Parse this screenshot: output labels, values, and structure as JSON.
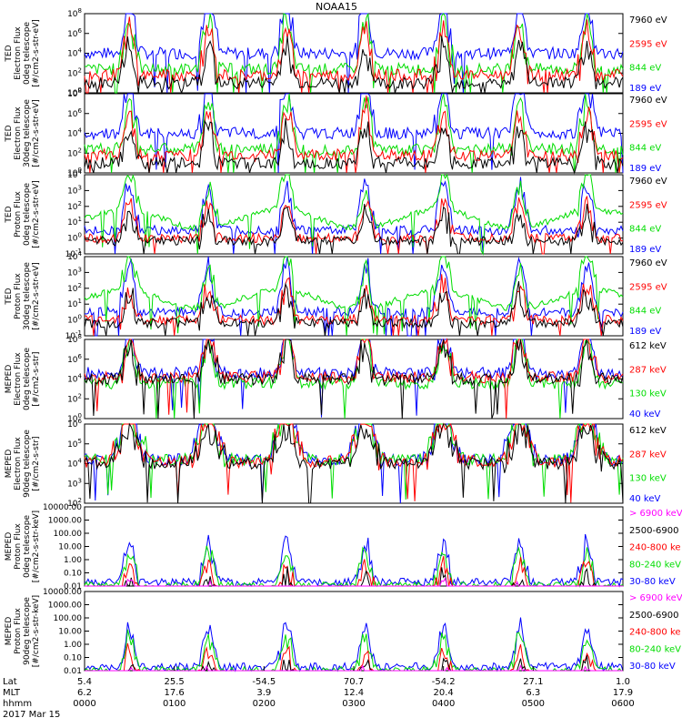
{
  "title": "NOAA15",
  "colors": {
    "blue": "#0000ff",
    "red": "#ff0000",
    "green": "#00dd00",
    "black": "#000000",
    "magenta": "#ff00ff"
  },
  "chart_data": [
    {
      "type": "line",
      "panel": 1,
      "ylabel": [
        "TED",
        "Electron Flux",
        "0deg telescope",
        "[#/cm2-s-str-eV]"
      ],
      "y_scale": "log",
      "yticks": [
        "10^0",
        "10^2",
        "10^4",
        "10^6",
        "10^8"
      ],
      "legend": [
        {
          "label": "7960 eV",
          "color": "#000000"
        },
        {
          "label": "2595 eV",
          "color": "#ff0000"
        },
        {
          "label": "844 eV",
          "color": "#00dd00"
        },
        {
          "label": "189 eV",
          "color": "#0000ff"
        }
      ],
      "series_profile": "ted_e0",
      "series": [
        {
          "name": "189 eV",
          "color": "#0000ff",
          "base": 2.0
        },
        {
          "name": "844 eV",
          "color": "#00dd00",
          "base": 1.2
        },
        {
          "name": "2595 eV",
          "color": "#ff0000",
          "base": 0.9
        },
        {
          "name": "7960 eV",
          "color": "#000000",
          "base": 0.5
        }
      ]
    },
    {
      "type": "line",
      "panel": 2,
      "ylabel": [
        "TED",
        "Electron Flux",
        "30deg telescope",
        "[#/cm2-s-str-eV]"
      ],
      "y_scale": "log",
      "yticks": [
        "10^0",
        "10^2",
        "10^4",
        "10^6",
        "10^8"
      ],
      "legend": [
        {
          "label": "7960 eV",
          "color": "#000000"
        },
        {
          "label": "2595 eV",
          "color": "#ff0000"
        },
        {
          "label": "844 eV",
          "color": "#00dd00"
        },
        {
          "label": "189 eV",
          "color": "#0000ff"
        }
      ],
      "series_profile": "ted_e30",
      "series": [
        {
          "name": "189 eV",
          "color": "#0000ff",
          "base": 2.0
        },
        {
          "name": "844 eV",
          "color": "#00dd00",
          "base": 1.2
        },
        {
          "name": "2595 eV",
          "color": "#ff0000",
          "base": 0.9
        },
        {
          "name": "7960 eV",
          "color": "#000000",
          "base": 0.5
        }
      ]
    },
    {
      "type": "line",
      "panel": 3,
      "ylabel": [
        "TED",
        "Proton Flux",
        "0deg telescope",
        "[#/cm2-s-str-eV]"
      ],
      "y_scale": "log",
      "yticks": [
        "10^-1",
        "10^0",
        "10^1",
        "10^2",
        "10^3",
        "10^4"
      ],
      "legend": [
        {
          "label": "7960 eV",
          "color": "#000000"
        },
        {
          "label": "2595 eV",
          "color": "#ff0000"
        },
        {
          "label": "844 eV",
          "color": "#00dd00"
        },
        {
          "label": "189 eV",
          "color": "#0000ff"
        }
      ],
      "series_profile": "ted_p0",
      "series": [
        {
          "name": "189 eV",
          "color": "#0000ff",
          "base": 1.5
        },
        {
          "name": "844 eV",
          "color": "#00dd00",
          "base": 2.2
        },
        {
          "name": "2595 eV",
          "color": "#ff0000",
          "base": 1.0
        },
        {
          "name": "7960 eV",
          "color": "#000000",
          "base": 0.8
        }
      ]
    },
    {
      "type": "line",
      "panel": 4,
      "ylabel": [
        "TED",
        "Proton Flux",
        "30deg telescope",
        "[#/cm2-s-str-eV]"
      ],
      "y_scale": "log",
      "yticks": [
        "10^-1",
        "10^0",
        "10^1",
        "10^2",
        "10^3",
        "10^4"
      ],
      "legend": [
        {
          "label": "7960 eV",
          "color": "#000000"
        },
        {
          "label": "2595 eV",
          "color": "#ff0000"
        },
        {
          "label": "844 eV",
          "color": "#00dd00"
        },
        {
          "label": "189 eV",
          "color": "#0000ff"
        }
      ],
      "series_profile": "ted_p30",
      "series": [
        {
          "name": "189 eV",
          "color": "#0000ff",
          "base": 1.5
        },
        {
          "name": "844 eV",
          "color": "#00dd00",
          "base": 2.3
        },
        {
          "name": "2595 eV",
          "color": "#ff0000",
          "base": 1.0
        },
        {
          "name": "7960 eV",
          "color": "#000000",
          "base": 0.8
        }
      ]
    },
    {
      "type": "line",
      "panel": 5,
      "ylabel": [
        "MEPED",
        "Electron Flux",
        "0deg telescope",
        "[#/cm2-s-str]"
      ],
      "y_scale": "log",
      "yticks": [
        "10^0",
        "10^2",
        "10^4",
        "10^6",
        "10^8"
      ],
      "legend": [
        {
          "label": "612 keV",
          "color": "#000000"
        },
        {
          "label": "287 keV",
          "color": "#ff0000"
        },
        {
          "label": "130 keV",
          "color": "#00dd00"
        },
        {
          "label": "40 keV",
          "color": "#0000ff"
        }
      ],
      "series_profile": "meped_e0",
      "series": [
        {
          "name": "40 keV",
          "color": "#0000ff",
          "base": 2.3
        },
        {
          "name": "130 keV",
          "color": "#00dd00",
          "base": 1.8
        },
        {
          "name": "287 keV",
          "color": "#ff0000",
          "base": 2.1
        },
        {
          "name": "612 keV",
          "color": "#000000",
          "base": 2.0
        }
      ]
    },
    {
      "type": "line",
      "panel": 6,
      "ylabel": [
        "MEPED",
        "Electron Flux",
        "90deg telescope",
        "[#/cm2-s-str]"
      ],
      "y_scale": "log",
      "yticks": [
        "10^2",
        "10^3",
        "10^4",
        "10^5",
        "10^6"
      ],
      "legend": [
        {
          "label": "612 keV",
          "color": "#000000"
        },
        {
          "label": "287 keV",
          "color": "#ff0000"
        },
        {
          "label": "130 keV",
          "color": "#00dd00"
        },
        {
          "label": "40 keV",
          "color": "#0000ff"
        }
      ],
      "series_profile": "meped_e90",
      "series": [
        {
          "name": "40 keV",
          "color": "#0000ff",
          "base": 2.2
        },
        {
          "name": "130 keV",
          "color": "#00dd00",
          "base": 2.2
        },
        {
          "name": "287 keV",
          "color": "#ff0000",
          "base": 2.1
        },
        {
          "name": "612 keV",
          "color": "#000000",
          "base": 2.0
        }
      ]
    },
    {
      "type": "line",
      "panel": 7,
      "ylabel": [
        "MEPED",
        "Proton Flux",
        "0deg telescope",
        "[#/cm2-s-str-keV]"
      ],
      "y_scale": "log",
      "yticks": [
        "0.01",
        "0.10",
        "1.00",
        "10.00",
        "100.00",
        "1000.00",
        "10000.00"
      ],
      "legend": [
        {
          "label": "> 6900 keV",
          "color": "#ff00ff"
        },
        {
          "label": "2500-6900",
          "color": "#000000"
        },
        {
          "label": "240-800 ke",
          "color": "#ff0000"
        },
        {
          "label": "80-240 keV",
          "color": "#00dd00"
        },
        {
          "label": "30-80 keV",
          "color": "#0000ff"
        }
      ],
      "series_profile": "meped_p0",
      "series": [
        {
          "name": "30-80 keV",
          "color": "#0000ff",
          "base": 0.3
        },
        {
          "name": "80-240 keV",
          "color": "#00dd00",
          "base": 0.0
        },
        {
          "name": "240-800 ke",
          "color": "#ff0000",
          "base": -0.5
        },
        {
          "name": "2500-6900",
          "color": "#000000",
          "base": -1.1
        },
        {
          "name": "> 6900 keV",
          "color": "#ff00ff",
          "base": -1.5
        }
      ]
    },
    {
      "type": "line",
      "panel": 8,
      "ylabel": [
        "MEPED",
        "Proton Flux",
        "90deg telescope",
        "[#/cm2-s-str-keV]"
      ],
      "y_scale": "log",
      "yticks": [
        "0.01",
        "0.10",
        "1.00",
        "10.00",
        "100.00",
        "1000.00",
        "10000.00"
      ],
      "legend": [
        {
          "label": "> 6900 keV",
          "color": "#ff00ff"
        },
        {
          "label": "2500-6900",
          "color": "#000000"
        },
        {
          "label": "240-800 ke",
          "color": "#ff0000"
        },
        {
          "label": "80-240 keV",
          "color": "#00dd00"
        },
        {
          "label": "30-80 keV",
          "color": "#0000ff"
        }
      ],
      "series_profile": "meped_p90",
      "series": [
        {
          "name": "30-80 keV",
          "color": "#0000ff",
          "base": 0.3
        },
        {
          "name": "80-240 keV",
          "color": "#00dd00",
          "base": 0.0
        },
        {
          "name": "240-800 ke",
          "color": "#ff0000",
          "base": -0.7
        },
        {
          "name": "2500-6900",
          "color": "#000000",
          "base": -1.2
        },
        {
          "name": "> 6900 keV",
          "color": "#ff00ff",
          "base": -1.5
        }
      ]
    }
  ],
  "x_axis": {
    "row_labels": [
      "Lat",
      "MLT",
      "hhmm"
    ],
    "date": "2017 Mar 15",
    "ticks": [
      {
        "lat": "5.4",
        "mlt": "6.2",
        "hhmm": "0000"
      },
      {
        "lat": "25.5",
        "mlt": "17.6",
        "hhmm": "0100"
      },
      {
        "lat": "-54.5",
        "mlt": "3.9",
        "hhmm": "0200"
      },
      {
        "lat": "70.7",
        "mlt": "12.4",
        "hhmm": "0300"
      },
      {
        "lat": "-54.2",
        "mlt": "20.4",
        "hhmm": "0400"
      },
      {
        "lat": "27.1",
        "mlt": "6.3",
        "hhmm": "0500"
      },
      {
        "lat": "1.0",
        "mlt": "17.9",
        "hhmm": "0600"
      }
    ],
    "orbit_passes_hours": [
      0.5,
      1.38,
      2.25,
      3.13,
      4.0,
      4.85,
      5.6
    ]
  }
}
